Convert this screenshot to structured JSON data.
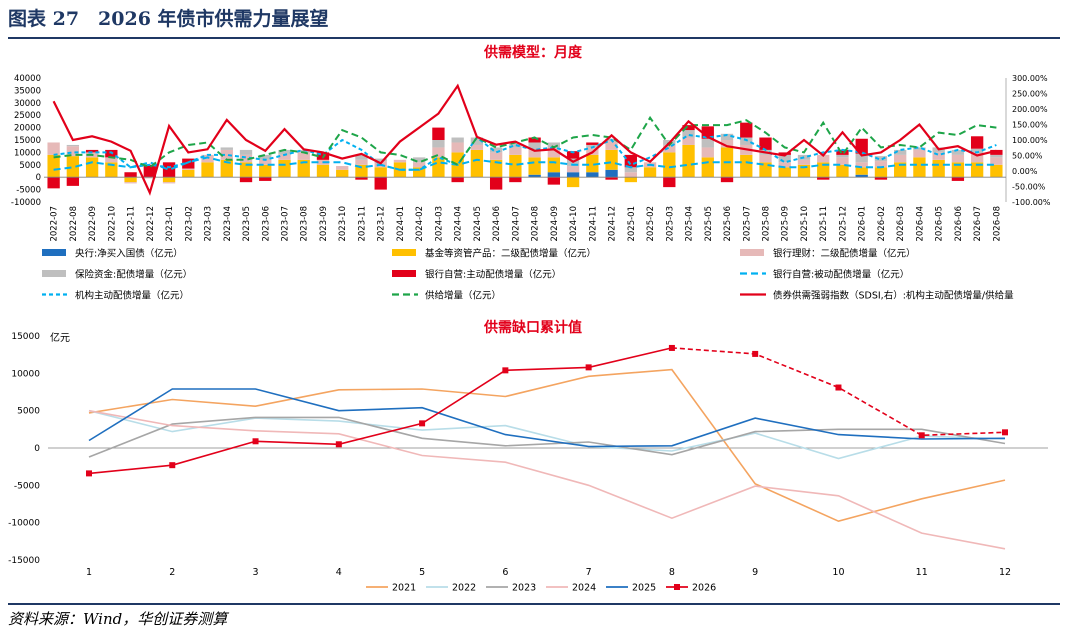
{
  "header": {
    "title": "图表 27　2026 年债市供需力量展望"
  },
  "footer": {
    "source": "资料来源：Wind，华创证券测算"
  },
  "colors": {
    "brand": "#1f3864",
    "title_red": "#e2001a",
    "pboc": "#1f6fbf",
    "fund": "#ffc000",
    "wmp": "#e6b9b8",
    "insurance": "#bfbfbf",
    "bank_active": "#e2001a",
    "bank_passive": "#00b0f0",
    "inst_active": "#00b0f0",
    "supply": "#1ea549",
    "sdsi": "#e2001a"
  },
  "chart_data": [
    {
      "type": "bar",
      "title": "供需模型：月度",
      "stacked": true,
      "categories": [
        "2022-07",
        "2022-08",
        "2022-09",
        "2022-10",
        "2022-11",
        "2022-12",
        "2023-01",
        "2023-02",
        "2023-03",
        "2023-04",
        "2023-05",
        "2023-06",
        "2023-07",
        "2023-08",
        "2023-09",
        "2023-10",
        "2023-11",
        "2023-12",
        "2024-01",
        "2024-02",
        "2024-03",
        "2024-04",
        "2024-05",
        "2024-06",
        "2024-07",
        "2024-08",
        "2024-09",
        "2024-10",
        "2024-11",
        "2024-12",
        "2025-01",
        "2025-02",
        "2025-03",
        "2025-04",
        "2025-05",
        "2025-06",
        "2025-07",
        "2025-08",
        "2025-09",
        "2025-10",
        "2025-11",
        "2025-12",
        "2026-01",
        "2026-02",
        "2026-03",
        "2026-04",
        "2026-05",
        "2026-06",
        "2026-07",
        "2026-08"
      ],
      "ylim": [
        -10000,
        40000
      ],
      "yticks": [
        "-10000",
        "-5000",
        "0",
        "5000",
        "10000",
        "15000",
        "20000",
        "25000",
        "30000",
        "35000",
        "40000"
      ],
      "y2lim": [
        -100,
        300
      ],
      "y2ticks": [
        "-100.00%",
        "-50.00%",
        "0.00%",
        "50.00%",
        "100.00%",
        "150.00%",
        "200.00%",
        "250.00%",
        "300.00%"
      ],
      "legend_position": "bottom",
      "bar_series": [
        {
          "name": "央行:净买入国债（亿元）",
          "color": "#1f6fbf",
          "values": [
            0,
            0,
            0,
            0,
            0,
            0,
            0,
            0,
            0,
            0,
            0,
            0,
            0,
            0,
            0,
            0,
            0,
            0,
            0,
            0,
            0,
            0,
            0,
            0,
            0,
            1000,
            2000,
            2000,
            2000,
            3000,
            0,
            0,
            0,
            0,
            0,
            0,
            0,
            0,
            0,
            0,
            0,
            0,
            1000,
            0,
            0,
            0,
            0,
            0,
            0,
            0
          ]
        },
        {
          "name": "基金等资管产品：二级配债增量（亿元）",
          "color": "#ffc000",
          "values": [
            9000,
            8500,
            8000,
            6000,
            -2000,
            0,
            -2000,
            3000,
            6000,
            7000,
            6000,
            5000,
            7000,
            7000,
            5000,
            3000,
            5000,
            4000,
            6000,
            4000,
            8000,
            10000,
            11000,
            7000,
            9000,
            7000,
            6000,
            -4000,
            7000,
            8000,
            -2000,
            4000,
            10000,
            13000,
            8000,
            12000,
            9000,
            6000,
            4000,
            5000,
            6000,
            5000,
            3000,
            4000,
            6000,
            8000,
            7000,
            6000,
            6000,
            5000
          ]
        },
        {
          "name": "银行理财：二级配债增量（亿元）",
          "color": "#e6b9b8",
          "values": [
            5000,
            4000,
            2000,
            2000,
            -500,
            -500,
            -500,
            500,
            3000,
            4000,
            3000,
            2000,
            2000,
            3000,
            2000,
            1500,
            2000,
            2500,
            1000,
            2000,
            4000,
            4000,
            2000,
            3000,
            3000,
            3000,
            4000,
            2500,
            3000,
            3500,
            2000,
            2000,
            3000,
            3000,
            4000,
            3000,
            4000,
            3000,
            2000,
            2000,
            3000,
            3000,
            2000,
            2500,
            3000,
            3000,
            3000,
            3000,
            3500,
            3000
          ]
        },
        {
          "name": "保险资金:配债增量（亿元）",
          "color": "#bfbfbf",
          "values": [
            0,
            500,
            0,
            0,
            0,
            0,
            0,
            0,
            0,
            1000,
            2000,
            2000,
            2000,
            1000,
            0,
            0,
            2000,
            1000,
            0,
            2000,
            3000,
            2000,
            3000,
            2000,
            1500,
            3000,
            2000,
            3000,
            1000,
            1000,
            2000,
            0,
            2000,
            3000,
            3500,
            2500,
            3000,
            2000,
            3000,
            2000,
            0,
            1000,
            3500,
            2000,
            2000,
            1000,
            2000,
            2000,
            2000,
            1000
          ]
        },
        {
          "name": "银行自营:主动配债增量（亿元）",
          "color": "#e2001a",
          "values": [
            -4500,
            -3500,
            1000,
            3000,
            2000,
            5000,
            6000,
            4000,
            0,
            0,
            -2000,
            -1500,
            0,
            0,
            3000,
            0,
            -1000,
            -5000,
            0,
            0,
            5000,
            -2000,
            0,
            -5000,
            -2000,
            2000,
            -3000,
            3000,
            1000,
            -1000,
            5000,
            0,
            -4000,
            2000,
            5000,
            -2000,
            6000,
            5000,
            1000,
            0,
            -1000,
            2000,
            6000,
            -1000,
            0,
            0,
            0,
            -1500,
            5000,
            2000
          ]
        }
      ],
      "line_series": [
        {
          "name": "银行自营:被动配债增量（亿元）",
          "color": "#00b0f0",
          "dash": "long",
          "axis": "left",
          "values": [
            3000,
            4000,
            6000,
            5000,
            4000,
            6000,
            3000,
            6000,
            8000,
            6000,
            5000,
            5000,
            5000,
            6000,
            6000,
            6000,
            4000,
            5000,
            3000,
            3000,
            6000,
            5000,
            7000,
            6000,
            5000,
            6000,
            6000,
            5000,
            5000,
            6000,
            4000,
            5000,
            4000,
            5000,
            6000,
            6000,
            6000,
            5000,
            4000,
            4000,
            5000,
            5000,
            4000,
            4000,
            5000,
            5000,
            5000,
            5000,
            5000,
            5000
          ]
        },
        {
          "name": "机构主动配债增量（亿元）",
          "color": "#00b0f0",
          "dash": "short",
          "axis": "left",
          "values": [
            9000,
            10000,
            10000,
            10000,
            4000,
            5000,
            4000,
            6000,
            9000,
            9000,
            8000,
            7000,
            9000,
            11000,
            9000,
            15000,
            11000,
            5000,
            3000,
            3000,
            8000,
            5000,
            16000,
            10000,
            13000,
            11000,
            12000,
            10000,
            12000,
            15000,
            5000,
            8000,
            12000,
            17000,
            16000,
            17000,
            15000,
            11000,
            6000,
            8000,
            10000,
            11000,
            10000,
            7000,
            11000,
            12000,
            9000,
            11000,
            10000,
            13000
          ]
        },
        {
          "name": "供给增量（亿元）",
          "color": "#1ea549",
          "dash": "long",
          "axis": "left",
          "values": [
            8000,
            9000,
            9000,
            8000,
            7000,
            4000,
            10000,
            13000,
            14000,
            7000,
            7000,
            9000,
            11000,
            10000,
            8000,
            19000,
            16000,
            10000,
            9000,
            6000,
            9000,
            5000,
            16000,
            12000,
            14000,
            16000,
            12000,
            16000,
            17000,
            16000,
            11000,
            24000,
            13000,
            21000,
            21000,
            21000,
            23000,
            18000,
            12000,
            10000,
            22000,
            9000,
            20000,
            12000,
            13000,
            12000,
            18000,
            17000,
            21000,
            20000
          ]
        },
        {
          "name": "债券供需强弱指数（SDSI,右）:机构主动配债增量/供给量",
          "color": "#e2001a",
          "dash": "solid",
          "axis": "right",
          "values": [
            225,
            100,
            112,
            95,
            65,
            -70,
            145,
            60,
            70,
            165,
            100,
            65,
            135,
            70,
            60,
            40,
            55,
            25,
            95,
            140,
            185,
            275,
            110,
            85,
            95,
            65,
            70,
            30,
            60,
            115,
            60,
            30,
            90,
            160,
            110,
            80,
            70,
            60,
            50,
            100,
            50,
            125,
            50,
            60,
            100,
            150,
            70,
            80,
            50,
            65
          ]
        }
      ]
    },
    {
      "type": "line",
      "title": "供需缺口累计值",
      "ylabel": "亿元",
      "x": [
        1,
        2,
        3,
        4,
        5,
        6,
        7,
        8,
        9,
        10,
        11,
        12
      ],
      "ylim": [
        -15000,
        15000
      ],
      "yticks": [
        "-15000",
        "-10000",
        "-5000",
        "0",
        "5000",
        "10000",
        "15000"
      ],
      "xticks": [
        "1",
        "2",
        "3",
        "4",
        "5",
        "6",
        "7",
        "8",
        "9",
        "10",
        "11",
        "12"
      ],
      "legend_position": "bottom",
      "series": [
        {
          "name": "2021",
          "color": "#f4a460",
          "values": [
            4700,
            6500,
            5600,
            7800,
            7900,
            6900,
            9600,
            10500,
            -4800,
            -9800,
            -6800,
            -4300
          ]
        },
        {
          "name": "2022",
          "color": "#b8dde8",
          "values": [
            5000,
            2200,
            4000,
            3600,
            2400,
            3000,
            200,
            -400,
            2000,
            -1400,
            1600,
            1200
          ]
        },
        {
          "name": "2023",
          "color": "#a6a6a6",
          "values": [
            -1200,
            3200,
            4100,
            4100,
            1300,
            300,
            800,
            -900,
            2200,
            2500,
            2500,
            600
          ]
        },
        {
          "name": "2024",
          "color": "#f0b8b8",
          "values": [
            5000,
            3000,
            2300,
            1900,
            -1000,
            -1900,
            -5000,
            -9400,
            -5100,
            -6400,
            -11400,
            -13500
          ]
        },
        {
          "name": "2025",
          "color": "#1f6fbf",
          "values": [
            1000,
            7900,
            7900,
            5000,
            5400,
            1800,
            200,
            300,
            4000,
            1800,
            1200,
            1300
          ]
        },
        {
          "name": "2026",
          "color": "#e2001a",
          "marker": "square",
          "dashed_from_index": 7,
          "values": [
            -3400,
            -2300,
            900,
            500,
            3300,
            10400,
            10800,
            13400,
            12600,
            8100,
            1700,
            2100
          ]
        }
      ]
    }
  ]
}
